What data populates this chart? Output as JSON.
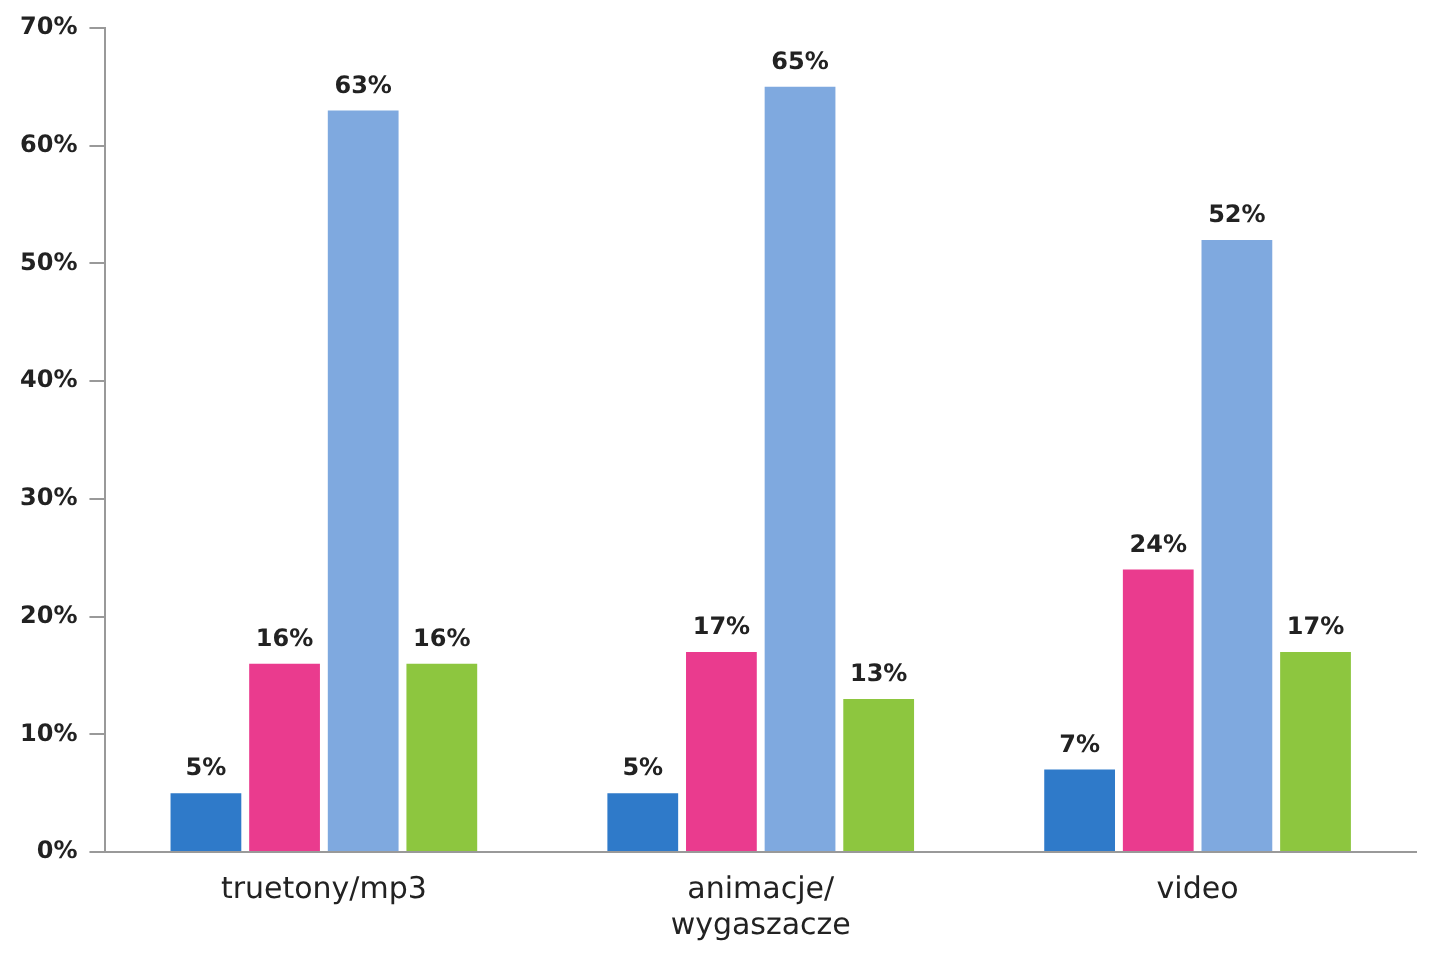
{
  "chart_data": {
    "type": "bar",
    "categories": [
      "truetony/mp3",
      "animacje/\nwygaszacze",
      "video"
    ],
    "series": [
      {
        "color": "#2f7ac9",
        "values": [
          5,
          5,
          7
        ],
        "value_labels": [
          "5%",
          "5%",
          "7%"
        ]
      },
      {
        "color": "#ea3b8e",
        "values": [
          16,
          17,
          24
        ],
        "value_labels": [
          "16%",
          "17%",
          "24%"
        ]
      },
      {
        "color": "#7fa9df",
        "values": [
          63,
          65,
          52
        ],
        "value_labels": [
          "63%",
          "65%",
          "52%"
        ]
      },
      {
        "color": "#8dc63f",
        "values": [
          16,
          13,
          17
        ],
        "value_labels": [
          "16%",
          "13%",
          "17%"
        ]
      }
    ],
    "ylim": [
      0,
      70
    ],
    "yticks": [
      {
        "value": 0,
        "label": "0%"
      },
      {
        "value": 10,
        "label": "10%"
      },
      {
        "value": 20,
        "label": "20%"
      },
      {
        "value": 30,
        "label": "30%"
      },
      {
        "value": 40,
        "label": "40%"
      },
      {
        "value": 50,
        "label": "50%"
      },
      {
        "value": 60,
        "label": "60%"
      },
      {
        "value": 70,
        "label": "70%"
      }
    ],
    "grid": false,
    "legend": false
  }
}
